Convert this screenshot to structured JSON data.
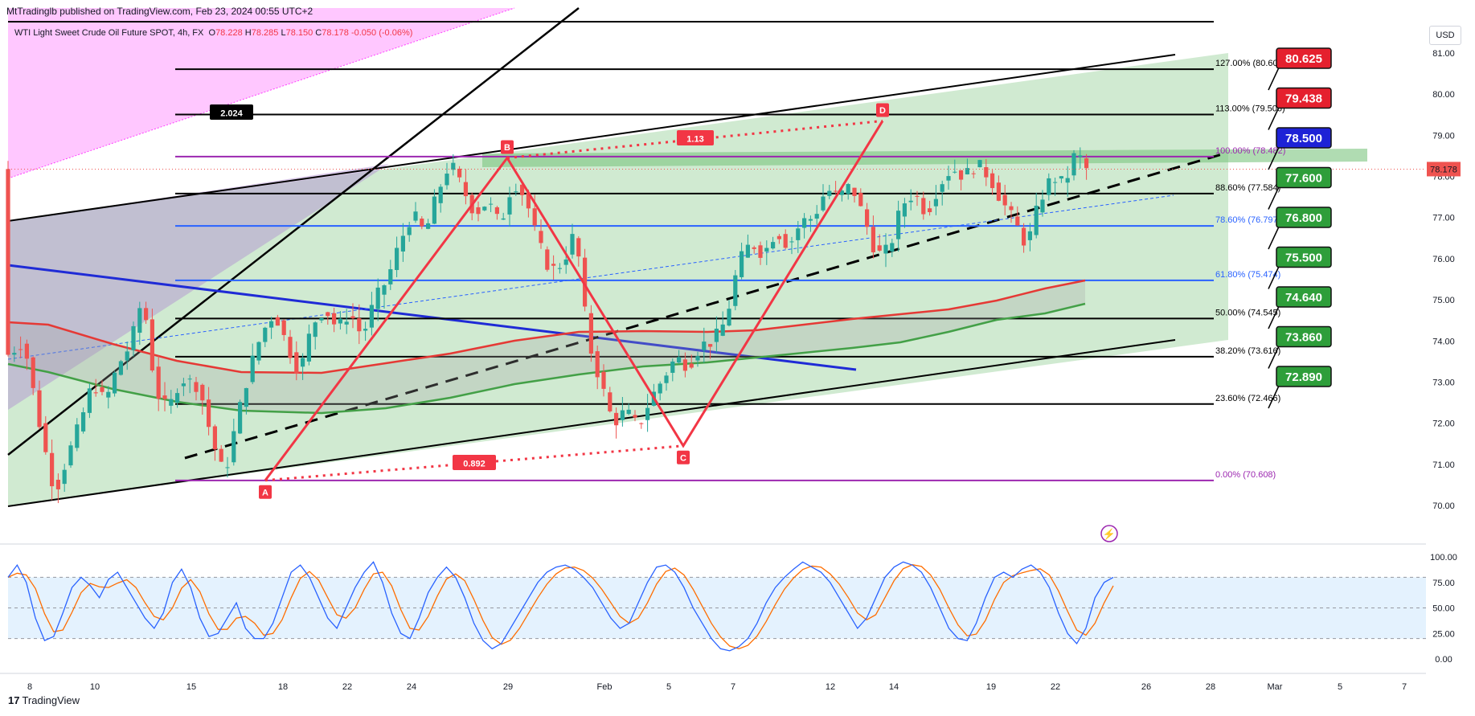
{
  "header": {
    "publisher": "MtTradinglb published on TradingView.com, Feb 23, 2024 00:55 UTC+2"
  },
  "legend": {
    "symbol": "WTI Light Sweet Crude Oil Future SPOT, 4h, FX",
    "o_label": "O",
    "o": "78.228",
    "h_label": "H",
    "h": "78.285",
    "l_label": "L",
    "l": "78.150",
    "c_label": "C",
    "c": "78.178",
    "change": "-0.050 (-0.06%)"
  },
  "currency": "USD",
  "footer": {
    "logo": "17",
    "brand": "TradingView"
  },
  "colors": {
    "up": "#26a69a",
    "down": "#ef5350",
    "pattern": "#f23645",
    "channel_fill": "#c8e6c9",
    "magenta_fill": "#ff99ff",
    "blue_line": "#1f2bd6",
    "fib_blue": "#2962ff",
    "fib_purple": "#9c27b0",
    "ma_red": "#e53935",
    "ma_green": "#43a047"
  },
  "chart_data": {
    "type": "candlestick",
    "symbol": "WTI Light Sweet Crude Oil Future SPOT",
    "timeframe": "4h",
    "ylim": [
      69.5,
      81.5
    ],
    "y_ticks": [
      "81.00",
      "80.00",
      "79.00",
      "78.00",
      "77.00",
      "76.00",
      "75.00",
      "74.00",
      "73.00",
      "72.00",
      "71.00",
      "70.00"
    ],
    "x_ticks": [
      "8",
      "10",
      "15",
      "18",
      "22",
      "24",
      "29",
      "Feb",
      "5",
      "7",
      "12",
      "14",
      "19",
      "22",
      "26",
      "28",
      "Mar",
      "5",
      "7"
    ],
    "last_price": "78.178",
    "price_path": [
      [
        0,
        73.6
      ],
      [
        3,
        74.0
      ],
      [
        6,
        71.6
      ],
      [
        8,
        70.3
      ],
      [
        10,
        71.2
      ],
      [
        12,
        72.0
      ],
      [
        14,
        73.0
      ],
      [
        16,
        72.5
      ],
      [
        18,
        73.4
      ],
      [
        20,
        73.9
      ],
      [
        22,
        75.1
      ],
      [
        24,
        72.8
      ],
      [
        26,
        72.3
      ],
      [
        28,
        73.1
      ],
      [
        31,
        72.9
      ],
      [
        33,
        71.6
      ],
      [
        35,
        70.7
      ],
      [
        37,
        72.1
      ],
      [
        39,
        73.3
      ],
      [
        41,
        74.2
      ],
      [
        43,
        74.7
      ],
      [
        45,
        73.9
      ],
      [
        47,
        73.2
      ],
      [
        49,
        74.4
      ],
      [
        51,
        74.8
      ],
      [
        53,
        74.3
      ],
      [
        55,
        74.7
      ],
      [
        57,
        74.1
      ],
      [
        59,
        75.0
      ],
      [
        61,
        75.5
      ],
      [
        63,
        76.4
      ],
      [
        65,
        77.1
      ],
      [
        67,
        76.6
      ],
      [
        69,
        77.6
      ],
      [
        71,
        78.35
      ],
      [
        73,
        77.7
      ],
      [
        75,
        77.1
      ],
      [
        77,
        77.4
      ],
      [
        79,
        76.8
      ],
      [
        81,
        77.9
      ],
      [
        83,
        77.5
      ],
      [
        85,
        76.4
      ],
      [
        87,
        75.7
      ],
      [
        89,
        75.9
      ],
      [
        91,
        76.7
      ],
      [
        93,
        74.0
      ],
      [
        95,
        73.0
      ],
      [
        97,
        72.0
      ],
      [
        99,
        72.3
      ],
      [
        101,
        71.9
      ],
      [
        103,
        72.6
      ],
      [
        105,
        73.1
      ],
      [
        107,
        73.6
      ],
      [
        109,
        73.4
      ],
      [
        111,
        73.9
      ],
      [
        113,
        74.0
      ],
      [
        115,
        74.5
      ],
      [
        117,
        75.9
      ],
      [
        119,
        76.4
      ],
      [
        121,
        76.1
      ],
      [
        123,
        76.7
      ],
      [
        125,
        76.3
      ],
      [
        127,
        76.9
      ],
      [
        129,
        77.0
      ],
      [
        131,
        77.7
      ],
      [
        133,
        77.5
      ],
      [
        135,
        77.8
      ],
      [
        137,
        77.0
      ],
      [
        139,
        76.1
      ],
      [
        141,
        76.2
      ],
      [
        143,
        77.3
      ],
      [
        145,
        77.6
      ],
      [
        147,
        77.1
      ],
      [
        149,
        77.8
      ],
      [
        151,
        78.2
      ],
      [
        153,
        78.0
      ],
      [
        155,
        78.3
      ],
      [
        157,
        78.0
      ],
      [
        159,
        77.4
      ],
      [
        161,
        76.9
      ],
      [
        163,
        76.3
      ],
      [
        165,
        77.4
      ],
      [
        167,
        78.0
      ],
      [
        169,
        77.8
      ],
      [
        171,
        78.7
      ],
      [
        172,
        78.18
      ]
    ],
    "harmonic_pattern": {
      "points": [
        {
          "label": "A",
          "value": 70.61
        },
        {
          "label": "B",
          "value": 78.45
        },
        {
          "label": "C",
          "value": 71.45
        },
        {
          "label": "D",
          "value": 79.35
        }
      ],
      "ratios": [
        "0.892",
        "1.13",
        "2.024"
      ]
    },
    "fib_levels": [
      {
        "label": "0.00% (70.608)",
        "value": 70.608
      },
      {
        "label": "23.60% (72.466)",
        "value": 72.466
      },
      {
        "label": "38.20% (73.616)",
        "value": 73.616
      },
      {
        "label": "50.00% (74.545)",
        "value": 74.545
      },
      {
        "label": "61.80% (75.474)",
        "value": 75.474
      },
      {
        "label": "78.60% (76.797)",
        "value": 76.797
      },
      {
        "label": "88.60% (77.584)",
        "value": 77.584
      },
      {
        "label": "100.00% (78.482)",
        "value": 78.482
      },
      {
        "label": "113.00% (79.506)",
        "value": 79.506
      },
      {
        "label": "127.00% (80.608)",
        "value": 80.608
      }
    ],
    "price_boxes": [
      {
        "label": "80.625",
        "value": 80.625,
        "color": "#e5202e"
      },
      {
        "label": "79.438",
        "value": 79.438,
        "color": "#e5202e"
      },
      {
        "label": "78.500",
        "value": 78.5,
        "color": "#1e22d6"
      },
      {
        "label": "77.600",
        "value": 77.6,
        "color": "#2e9e3a"
      },
      {
        "label": "76.800",
        "value": 76.8,
        "color": "#2e9e3a"
      },
      {
        "label": "75.500",
        "value": 75.5,
        "color": "#2e9e3a"
      },
      {
        "label": "74.640",
        "value": 74.64,
        "color": "#2e9e3a"
      },
      {
        "label": "73.860",
        "value": 73.86,
        "color": "#2e9e3a"
      },
      {
        "label": "72.890",
        "value": 72.89,
        "color": "#2e9e3a"
      }
    ],
    "oscillator": {
      "type": "stochastic",
      "ylim": [
        0,
        100
      ],
      "y_ticks": [
        "100.00",
        "75.00",
        "50.00",
        "25.00",
        "0.00"
      ],
      "levels": [
        80,
        20
      ]
    }
  }
}
